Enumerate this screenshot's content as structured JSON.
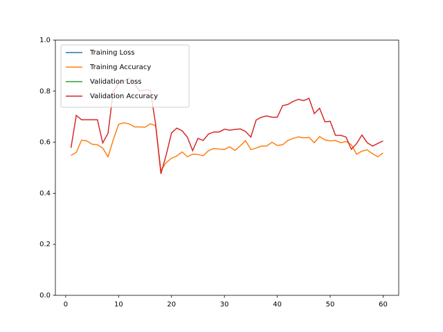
{
  "chart_data": {
    "type": "line",
    "x": [
      1,
      2,
      3,
      4,
      5,
      6,
      7,
      8,
      9,
      10,
      11,
      12,
      13,
      14,
      15,
      16,
      17,
      18,
      19,
      20,
      21,
      22,
      23,
      24,
      25,
      26,
      27,
      28,
      29,
      30,
      31,
      32,
      33,
      34,
      35,
      36,
      37,
      38,
      39,
      40,
      41,
      42,
      43,
      44,
      45,
      46,
      47,
      48,
      49,
      50,
      51,
      52,
      53,
      54,
      55,
      56,
      57,
      58,
      59,
      60
    ],
    "series": [
      {
        "name": "Training Loss",
        "color": "#1f77b4",
        "values": [
          null,
          null,
          null,
          null,
          null,
          null,
          null,
          null,
          null,
          null,
          null,
          null,
          null,
          null,
          null,
          null,
          null,
          null,
          null,
          null,
          null,
          null,
          null,
          null,
          null,
          null,
          null,
          null,
          null,
          null,
          null,
          null,
          null,
          null,
          null,
          null,
          null,
          null,
          null,
          null,
          null,
          null,
          null,
          null,
          null,
          null,
          null,
          null,
          null,
          null,
          null,
          null,
          null,
          null,
          null,
          null,
          null,
          null,
          null,
          null
        ]
      },
      {
        "name": "Training Accuracy",
        "color": "#ff7f0e",
        "values": [
          0.548,
          0.56,
          0.608,
          0.605,
          0.592,
          0.59,
          0.577,
          0.543,
          0.61,
          0.67,
          0.676,
          0.672,
          0.66,
          0.66,
          0.659,
          0.672,
          0.665,
          0.49,
          0.52,
          0.537,
          0.546,
          0.562,
          0.543,
          0.553,
          0.552,
          0.547,
          0.567,
          0.575,
          0.573,
          0.572,
          0.582,
          0.568,
          0.586,
          0.606,
          0.571,
          0.577,
          0.585,
          0.585,
          0.6,
          0.587,
          0.59,
          0.607,
          0.615,
          0.621,
          0.617,
          0.619,
          0.598,
          0.622,
          0.609,
          0.605,
          0.607,
          0.598,
          0.603,
          0.59,
          0.553,
          0.565,
          0.57,
          0.555,
          0.543,
          0.558
        ]
      },
      {
        "name": "Validation Loss",
        "color": "#2ca02c",
        "values": [
          null,
          null,
          null,
          null,
          null,
          null,
          null,
          null,
          null,
          null,
          null,
          null,
          null,
          null,
          null,
          null,
          null,
          null,
          null,
          null,
          null,
          null,
          null,
          null,
          null,
          null,
          null,
          null,
          null,
          null,
          null,
          null,
          null,
          null,
          null,
          null,
          null,
          null,
          null,
          null,
          null,
          null,
          null,
          null,
          null,
          null,
          null,
          null,
          null,
          null,
          null,
          null,
          null,
          null,
          null,
          null,
          null,
          null,
          null,
          null
        ]
      },
      {
        "name": "Validation Accuracy",
        "color": "#d62728",
        "values": [
          0.578,
          0.705,
          0.688,
          0.688,
          0.688,
          0.688,
          0.597,
          0.635,
          0.8,
          0.83,
          0.84,
          0.85,
          0.83,
          0.8,
          0.805,
          0.805,
          0.67,
          0.476,
          0.55,
          0.636,
          0.655,
          0.645,
          0.62,
          0.567,
          0.615,
          0.607,
          0.632,
          0.64,
          0.64,
          0.651,
          0.647,
          0.65,
          0.652,
          0.642,
          0.62,
          0.687,
          0.698,
          0.703,
          0.698,
          0.698,
          0.743,
          0.748,
          0.76,
          0.768,
          0.763,
          0.772,
          0.712,
          0.733,
          0.68,
          0.682,
          0.627,
          0.627,
          0.62,
          0.572,
          0.595,
          0.628,
          0.598,
          0.585,
          0.595,
          0.605
        ]
      }
    ],
    "xlim": [
      -1.95,
      62.95
    ],
    "xticks": [
      0,
      10,
      20,
      30,
      40,
      50,
      60
    ],
    "ylim": [
      0,
      1
    ],
    "yticks": [
      {
        "value": 0,
        "label": "0.0"
      },
      {
        "value": 0.2,
        "label": "0.2"
      },
      {
        "value": 0.4,
        "label": "0.4"
      },
      {
        "value": 0.6,
        "label": "0.6"
      },
      {
        "value": 0.8,
        "label": "0.8"
      },
      {
        "value": 1,
        "label": "1.0"
      }
    ],
    "legend": "upper left",
    "grid": false
  }
}
